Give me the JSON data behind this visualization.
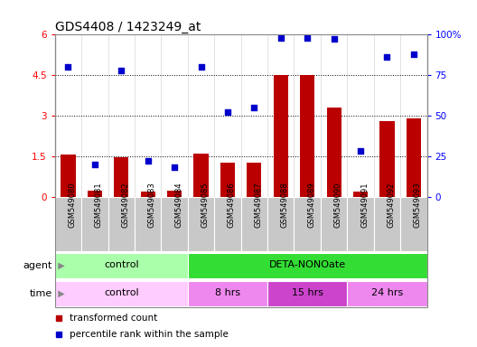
{
  "title": "GDS4408 / 1423249_at",
  "samples": [
    "GSM549080",
    "GSM549081",
    "GSM549082",
    "GSM549083",
    "GSM549084",
    "GSM549085",
    "GSM549086",
    "GSM549087",
    "GSM549088",
    "GSM549089",
    "GSM549090",
    "GSM549091",
    "GSM549092",
    "GSM549093"
  ],
  "transformed_count": [
    1.55,
    0.22,
    1.45,
    0.18,
    0.22,
    1.6,
    1.25,
    1.25,
    4.5,
    4.5,
    3.3,
    0.2,
    2.8,
    2.9
  ],
  "percentile_rank": [
    80,
    20,
    78,
    22,
    18,
    80,
    52,
    55,
    98,
    98,
    97,
    28,
    86,
    88
  ],
  "bar_color": "#bb0000",
  "dot_color": "#0000cc",
  "ylim_left": [
    0,
    6
  ],
  "ylim_right": [
    0,
    100
  ],
  "yticks_left": [
    0,
    1.5,
    3.0,
    4.5,
    6.0
  ],
  "yticks_right": [
    0,
    25,
    50,
    75,
    100
  ],
  "ytick_labels_left": [
    "0",
    "1.5",
    "3",
    "4.5",
    "6"
  ],
  "ytick_labels_right": [
    "0",
    "25",
    "50",
    "75",
    "100%"
  ],
  "agent_groups": [
    {
      "label": "control",
      "start": 0,
      "end": 5,
      "color": "#aaffaa"
    },
    {
      "label": "DETA-NONOate",
      "start": 5,
      "end": 14,
      "color": "#33dd33"
    }
  ],
  "time_groups": [
    {
      "label": "control",
      "start": 0,
      "end": 5,
      "color": "#ffccff"
    },
    {
      "label": "8 hrs",
      "start": 5,
      "end": 8,
      "color": "#ee88ee"
    },
    {
      "label": "15 hrs",
      "start": 8,
      "end": 11,
      "color": "#cc44cc"
    },
    {
      "label": "24 hrs",
      "start": 11,
      "end": 14,
      "color": "#ee88ee"
    }
  ],
  "legend_items": [
    {
      "label": "transformed count",
      "color": "#bb0000"
    },
    {
      "label": "percentile rank within the sample",
      "color": "#0000cc"
    }
  ],
  "title_fontsize": 10,
  "xticklabel_bg": "#c8c8c8",
  "spine_color": "#888888"
}
